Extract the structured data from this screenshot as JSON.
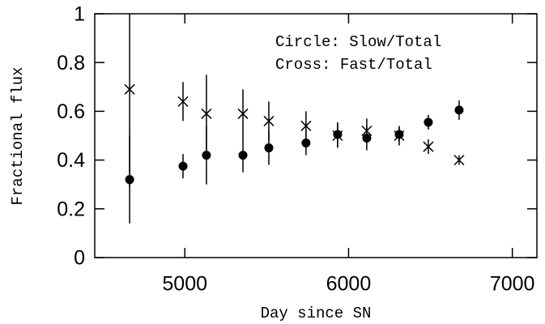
{
  "chart_data": {
    "type": "scatter",
    "xlabel": "Day since SN",
    "ylabel": "Fractional flux",
    "annotations": [
      "Circle: Slow/Total",
      "Cross: Fast/Total"
    ],
    "series": [
      {
        "marker": "circle",
        "color": "#000000",
        "x": [
          4663,
          4989,
          5132,
          5355,
          5513,
          5740,
          5933,
          6111,
          6309,
          6487,
          6675
        ],
        "values": [
          0.32,
          0.375,
          0.42,
          0.42,
          0.45,
          0.47,
          0.505,
          0.49,
          0.505,
          0.555,
          0.605
        ],
        "errors": [
          0.18,
          0.05,
          0.12,
          0.07,
          0.07,
          0.05,
          0.05,
          0.05,
          0.03,
          0.03,
          0.04
        ]
      },
      {
        "marker": "cross",
        "color": "#000000",
        "x": [
          4663,
          4989,
          5132,
          5355,
          5513,
          5740,
          5933,
          6111,
          6309,
          6487,
          6675
        ],
        "values": [
          0.69,
          0.64,
          0.59,
          0.59,
          0.56,
          0.54,
          0.5,
          0.52,
          0.5,
          0.455,
          0.4
        ],
        "errors": [
          0.4,
          0.08,
          0.16,
          0.1,
          0.08,
          0.06,
          0.05,
          0.05,
          0.04,
          0.03,
          0.02
        ]
      }
    ],
    "xlim": [
      4450,
      7150
    ],
    "xticks": [
      5000,
      6000,
      7000
    ],
    "ylim": [
      0,
      1
    ],
    "yticks": [
      0,
      0.2,
      0.4,
      0.6,
      0.8,
      1
    ]
  }
}
